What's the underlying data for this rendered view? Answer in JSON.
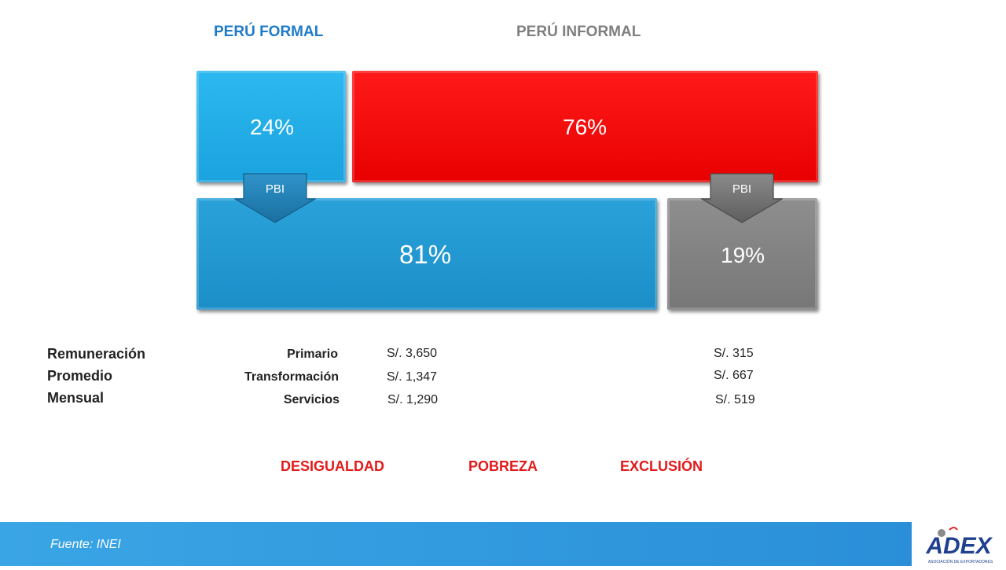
{
  "headers": {
    "formal": "PERÚ FORMAL",
    "informal": "PERÚ INFORMAL"
  },
  "boxes": {
    "formal_share": "24%",
    "informal_share": "76%",
    "formal_pbi": "81%",
    "informal_pbi": "19%"
  },
  "arrows": {
    "formal_label": "PBI",
    "informal_label": "PBI"
  },
  "remuneration": {
    "label": [
      "Remuneración",
      "Promedio",
      "Mensual"
    ],
    "rows": [
      {
        "sector": "Primario",
        "formal": "S/. 3,650",
        "informal": "S/. 315"
      },
      {
        "sector": "Transformación",
        "formal": "S/. 1,347",
        "informal": "S/. 667"
      },
      {
        "sector": "Servicios",
        "formal": "S/. 1,290",
        "informal": "S/. 519"
      }
    ]
  },
  "consequences": [
    "DESIGUALDAD",
    "POBREZA",
    "EXCLUSIÓN"
  ],
  "footer": {
    "source": "Fuente: INEI",
    "logo_text": "ADEX",
    "logo_subtext": "ASOCIACIÓN DE EXPORTADORES"
  },
  "colors": {
    "formal_blue": "#1aa3de",
    "informal_red": "#e80000",
    "pbi_blue": "#1b8ec8",
    "pbi_gray": "#777777",
    "footer_blue": "#2a8fd8",
    "accent_red": "#e31a1a"
  }
}
